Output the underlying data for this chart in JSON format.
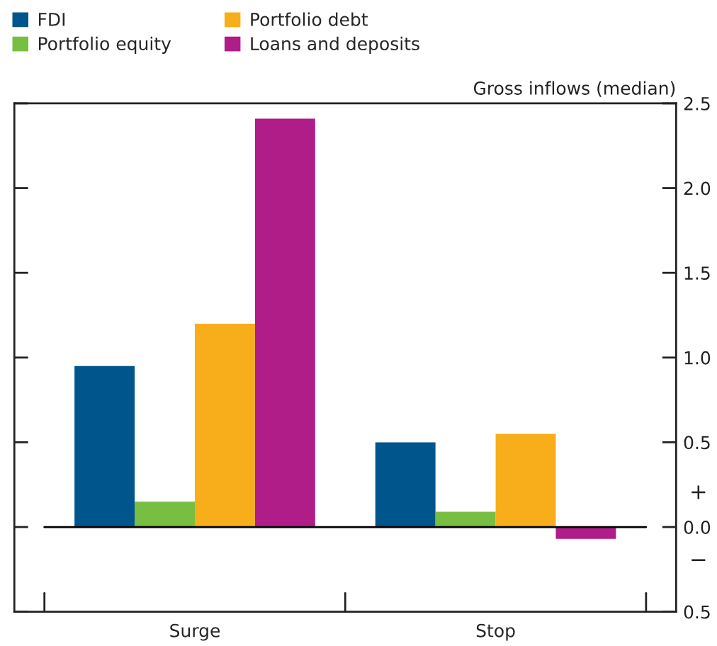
{
  "chart_data": {
    "type": "bar",
    "ylabel": "Gross inflows (median)",
    "categories": [
      "Surge",
      "Stop"
    ],
    "series": [
      {
        "name": "FDI",
        "color": "#00558c",
        "values": [
          0.95,
          0.5
        ]
      },
      {
        "name": "Portfolio equity",
        "color": "#78be43",
        "values": [
          0.15,
          0.09
        ]
      },
      {
        "name": "Portfolio debt",
        "color": "#f8ae1a",
        "values": [
          1.2,
          0.55
        ]
      },
      {
        "name": "Loans and deposits",
        "color": "#b01c88",
        "values": [
          2.41,
          -0.07
        ]
      }
    ],
    "ylim": [
      -0.5,
      2.5
    ],
    "yticks": [
      {
        "value": -0.5,
        "label": "0.5"
      },
      {
        "value": 0,
        "label": "0.0"
      },
      0.5,
      {
        "value": 1,
        "label": "1.0"
      },
      1.5,
      {
        "value": 2,
        "label": "2.0"
      },
      2.5
    ],
    "ref_lines": [
      {
        "axis": "y",
        "value": 0,
        "color": "#000000"
      }
    ],
    "annotations": [
      "+",
      "−"
    ],
    "grid": false,
    "legend": "top left"
  }
}
